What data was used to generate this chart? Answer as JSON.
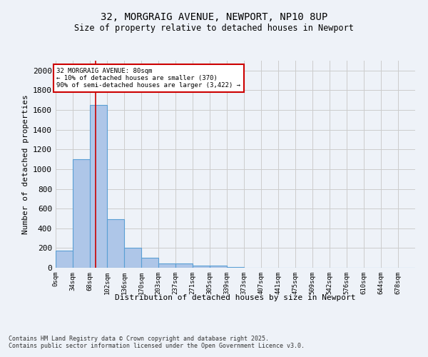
{
  "title_line1": "32, MORGRAIG AVENUE, NEWPORT, NP10 8UP",
  "title_line2": "Size of property relative to detached houses in Newport",
  "xlabel": "Distribution of detached houses by size in Newport",
  "ylabel": "Number of detached properties",
  "bar_values": [
    175,
    1100,
    1650,
    490,
    205,
    100,
    45,
    40,
    25,
    25,
    10,
    0,
    0,
    0,
    0,
    0,
    0,
    0,
    0,
    0,
    0
  ],
  "bar_labels": [
    "0sqm",
    "34sqm",
    "68sqm",
    "102sqm",
    "136sqm",
    "170sqm",
    "203sqm",
    "237sqm",
    "271sqm",
    "305sqm",
    "339sqm",
    "373sqm",
    "407sqm",
    "441sqm",
    "475sqm",
    "509sqm",
    "542sqm",
    "576sqm",
    "610sqm",
    "644sqm",
    "678sqm"
  ],
  "bar_color": "#aec6e8",
  "bar_edge_color": "#5a9fd4",
  "grid_color": "#cccccc",
  "bg_color": "#eef2f8",
  "red_line_x": 80,
  "annotation_text": "32 MORGRAIG AVENUE: 80sqm\n← 10% of detached houses are smaller (370)\n90% of semi-detached houses are larger (3,422) →",
  "annotation_box_color": "#ffffff",
  "annotation_border_color": "#cc0000",
  "ylim": [
    0,
    2100
  ],
  "yticks": [
    0,
    200,
    400,
    600,
    800,
    1000,
    1200,
    1400,
    1600,
    1800,
    2000
  ],
  "footnote": "Contains HM Land Registry data © Crown copyright and database right 2025.\nContains public sector information licensed under the Open Government Licence v3.0.",
  "bin_width": 34
}
